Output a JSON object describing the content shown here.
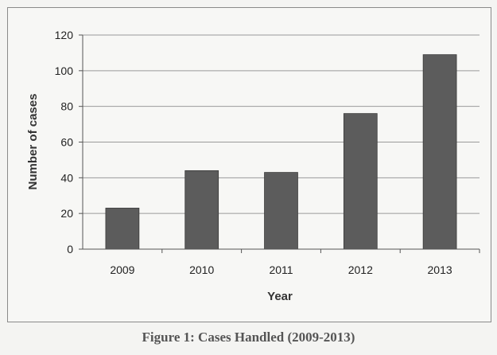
{
  "chart_data": {
    "type": "bar",
    "categories": [
      "2009",
      "2010",
      "2011",
      "2012",
      "2013"
    ],
    "values": [
      23,
      44,
      43,
      76,
      109
    ],
    "title": "",
    "xlabel": "Year",
    "ylabel": "Number of cases",
    "ylim": [
      0,
      120
    ],
    "yticks": [
      0,
      20,
      40,
      60,
      80,
      100,
      120
    ],
    "grid": "horizontal",
    "bar_color": "#5c5c5c",
    "grid_color": "#9a9a9a"
  },
  "caption": "Figure 1: Cases Handled (2009-2013)"
}
